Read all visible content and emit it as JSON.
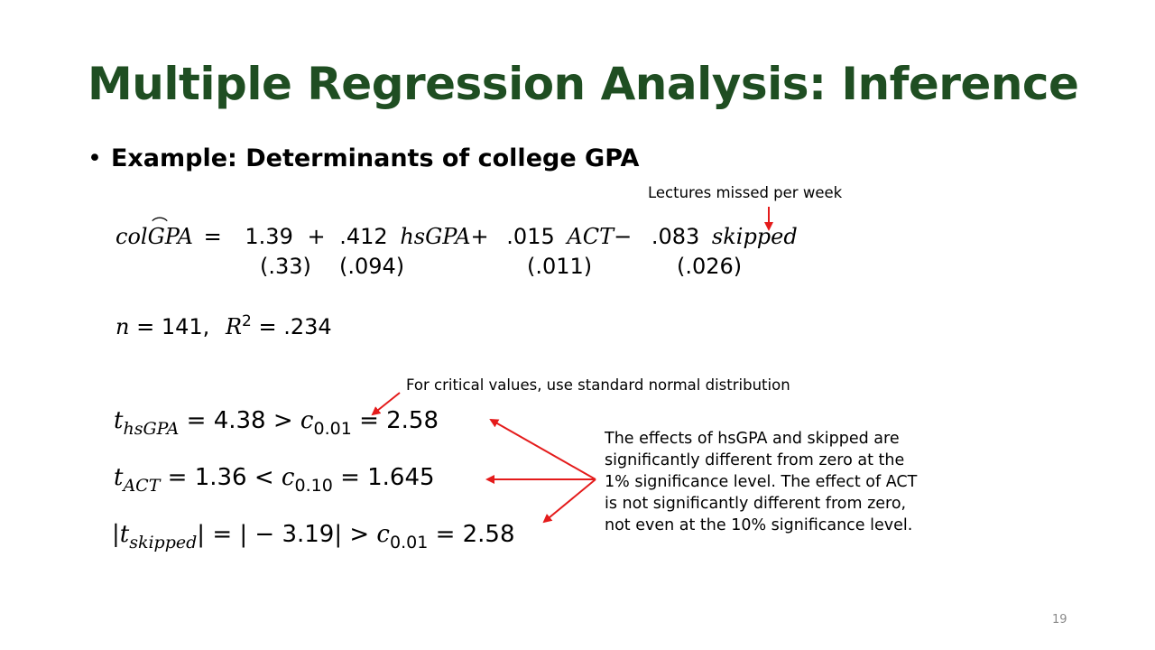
{
  "title": "Multiple Regression Analysis: Inference",
  "bullet": {
    "symbol": "•",
    "text": "Example: Determinants of college GPA"
  },
  "annotations": {
    "lectures_missed": "Lectures missed per week",
    "critical_values": "For critical values, use standard normal distribution"
  },
  "equation": {
    "lhs": "colGPA",
    "equals": "=",
    "intercept": "1.39",
    "plus1": "+",
    "coef_hsgpa": ".412",
    "var_hsgpa": "hsGPA",
    "plus2": "+",
    "coef_act": ".015",
    "var_act": "ACT",
    "minus": "−",
    "coef_skipped": ".083",
    "var_skipped": "skipped",
    "se_intercept": "(.33)",
    "se_hsgpa": "(.094)",
    "se_act": "(.011)",
    "se_skipped": "(.026)"
  },
  "fit": {
    "n_label": "n",
    "n_value": "= 141,",
    "r2_label": "R",
    "r2_exp": "2",
    "r2_value": "= .234"
  },
  "tests": [
    {
      "t": "t",
      "sub": "hsGPA",
      "rel": "= 4.38 >",
      "c": "c",
      "csub": "0.01",
      "crit": "= 2.58"
    },
    {
      "t": "t",
      "sub": "ACT",
      "rel": "= 1.36 <",
      "c": "c",
      "csub": "0.10",
      "crit": "= 1.645"
    },
    {
      "t": "|t",
      "sub": "skipped",
      "rel": "| = | − 3.19| >",
      "c": "c",
      "csub": "0.01",
      "crit": "= 2.58"
    }
  ],
  "explanation": "The effects of hsGPA and skipped are significantly different from zero at the 1% significance level. The effect of ACT is not significantly different from zero, not even at the 10% significance level.",
  "page_number": "19",
  "colors": {
    "title": "#1f4e22",
    "arrow": "#e41b1b",
    "page_number": "#8a8a8a"
  }
}
